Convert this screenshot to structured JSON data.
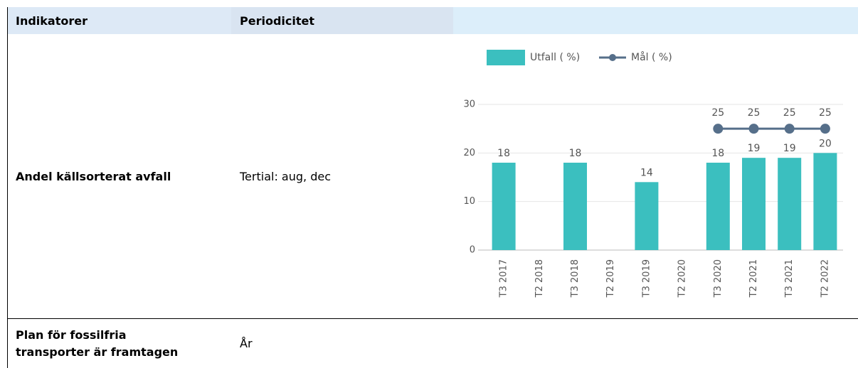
{
  "table": {
    "header": [
      "Indikatorer",
      "Periodicitet"
    ],
    "rows": [
      [
        "Andel källsorterat avfall",
        "Tertial: aug, dec"
      ],
      [
        "Plan för fossilfria transporter är framtagen",
        "År"
      ]
    ]
  },
  "chart_data": {
    "type": "bar",
    "categories": [
      "T3 2017",
      "T2 2018",
      "T3 2018",
      "T2 2019",
      "T3 2019",
      "T2 2020",
      "T3 2020",
      "T2 2021",
      "T3 2021",
      "T2 2022"
    ],
    "series": [
      {
        "name": "Utfall ( %)",
        "color": "#3bbfbf",
        "values": [
          18,
          null,
          18,
          null,
          14,
          null,
          18,
          19,
          19,
          20
        ]
      },
      {
        "name": "Mål ( %)",
        "type": "line",
        "color": "#566f8a",
        "values": [
          null,
          null,
          null,
          null,
          null,
          null,
          25,
          25,
          25,
          25
        ]
      }
    ],
    "ylim": [
      0,
      30
    ],
    "yticks": [
      0,
      10,
      20,
      30
    ],
    "grid": true
  }
}
